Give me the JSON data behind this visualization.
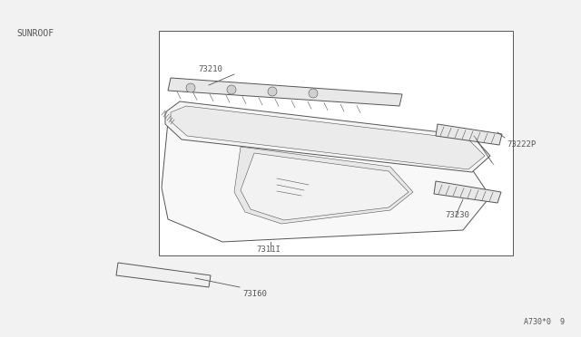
{
  "bg_color": "#f2f2f2",
  "line_color": "#555555",
  "box_color": "#ffffff",
  "title_text": "SUNROOF",
  "footer_text": "A730*0  9",
  "lw": 0.7,
  "thin_lw": 0.4,
  "label_73160": "73I60",
  "label_73111": "7311I",
  "label_73230": "73230",
  "label_73222P": "73222P",
  "label_73210": "73210"
}
